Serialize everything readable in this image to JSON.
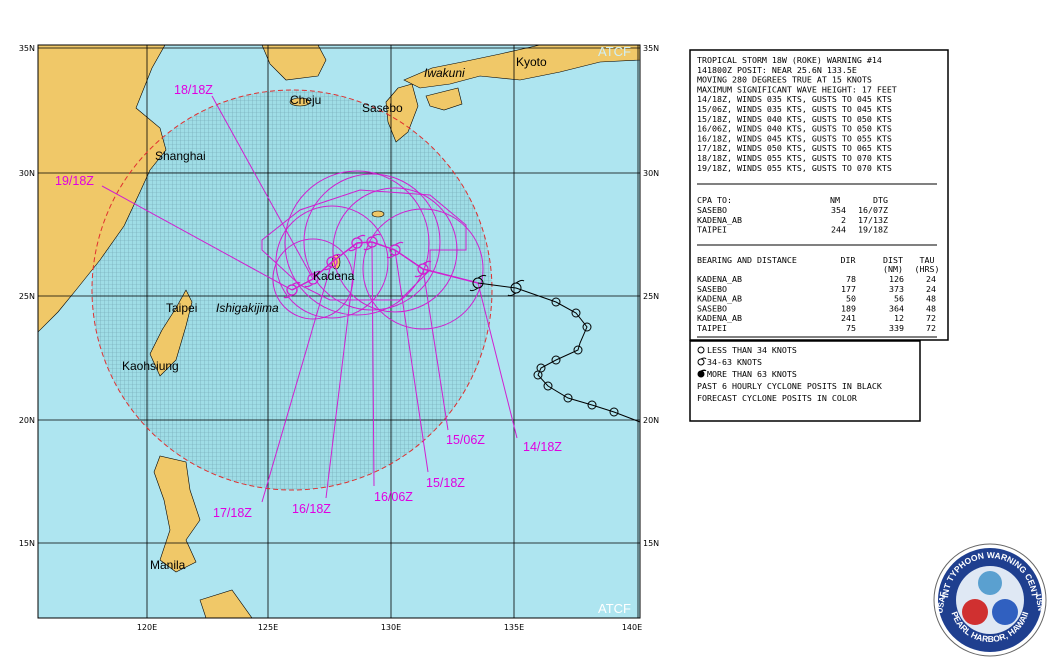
{
  "map": {
    "lat_labels": [
      "35N",
      "30N",
      "25N",
      "20N",
      "15N"
    ],
    "lon_labels": [
      "120E",
      "125E",
      "130E",
      "135E",
      "140E"
    ],
    "places": [
      "Kyoto",
      "Iwakuni",
      "Cheju",
      "Sasebo",
      "Shanghai",
      "Kadena",
      "Taipei",
      "Ishigakijima",
      "Kaohsiung",
      "Manila"
    ],
    "forecast_labels": [
      "14/18Z",
      "15/06Z",
      "15/18Z",
      "16/06Z",
      "16/18Z",
      "17/18Z",
      "18/18Z",
      "19/18Z"
    ],
    "source": "ATCF"
  },
  "warning": {
    "header": [
      "TROPICAL STORM 18W (ROKE) WARNING #14",
      "141800Z POSIT: NEAR 25.6N 133.5E",
      "MOVING 280 DEGREES TRUE AT 15 KNOTS",
      "MAXIMUM SIGNIFICANT WAVE HEIGHT: 17 FEET",
      "14/18Z, WINDS 035 KTS, GUSTS TO 045 KTS",
      "15/06Z, WINDS 035 KTS, GUSTS TO 045 KTS",
      "15/18Z, WINDS 040 KTS, GUSTS TO 050 KTS",
      "16/06Z, WINDS 040 KTS, GUSTS TO 050 KTS",
      "16/18Z, WINDS 045 KTS, GUSTS TO 055 KTS",
      "17/18Z, WINDS 050 KTS, GUSTS TO 065 KTS",
      "18/18Z, WINDS 055 KTS, GUSTS TO 070 KTS",
      "19/18Z, WINDS 055 KTS, GUSTS TO 070 KTS"
    ],
    "cpa": {
      "title": "CPA TO:",
      "columns": [
        "NM",
        "DTG"
      ],
      "rows": [
        [
          "SASEBO",
          354,
          "16/07Z"
        ],
        [
          "KADENA_AB",
          2,
          "17/13Z"
        ],
        [
          "TAIPEI",
          244,
          "19/18Z"
        ]
      ]
    },
    "bearing": {
      "title": "BEARING AND DISTANCE",
      "columns": [
        "DIR",
        "DIST",
        "TAU"
      ],
      "units": [
        "(NM)",
        "(HRS)"
      ],
      "rows": [
        [
          "KADENA_AB",
          78,
          126,
          24
        ],
        [
          "SASEBO",
          177,
          373,
          24
        ],
        [
          "KADENA_AB",
          50,
          56,
          48
        ],
        [
          "SASEBO",
          189,
          364,
          48
        ],
        [
          "KADENA_AB",
          241,
          12,
          72
        ],
        [
          "TAIPEI",
          75,
          339,
          72
        ]
      ]
    }
  },
  "legend": [
    "LESS THAN 34 KNOTS",
    "34-63 KNOTS",
    "MORE THAN 63 KNOTS",
    "PAST 6 HOURLY CYCLONE POSITS IN BLACK",
    "FORECAST CYCLONE POSITS IN COLOR"
  ],
  "logo": {
    "top": "JOINT TYPHOON WARNING CENTER",
    "bottom": "PEARL HARBOR, HAWAII",
    "left": "USAF",
    "right": "USN"
  }
}
